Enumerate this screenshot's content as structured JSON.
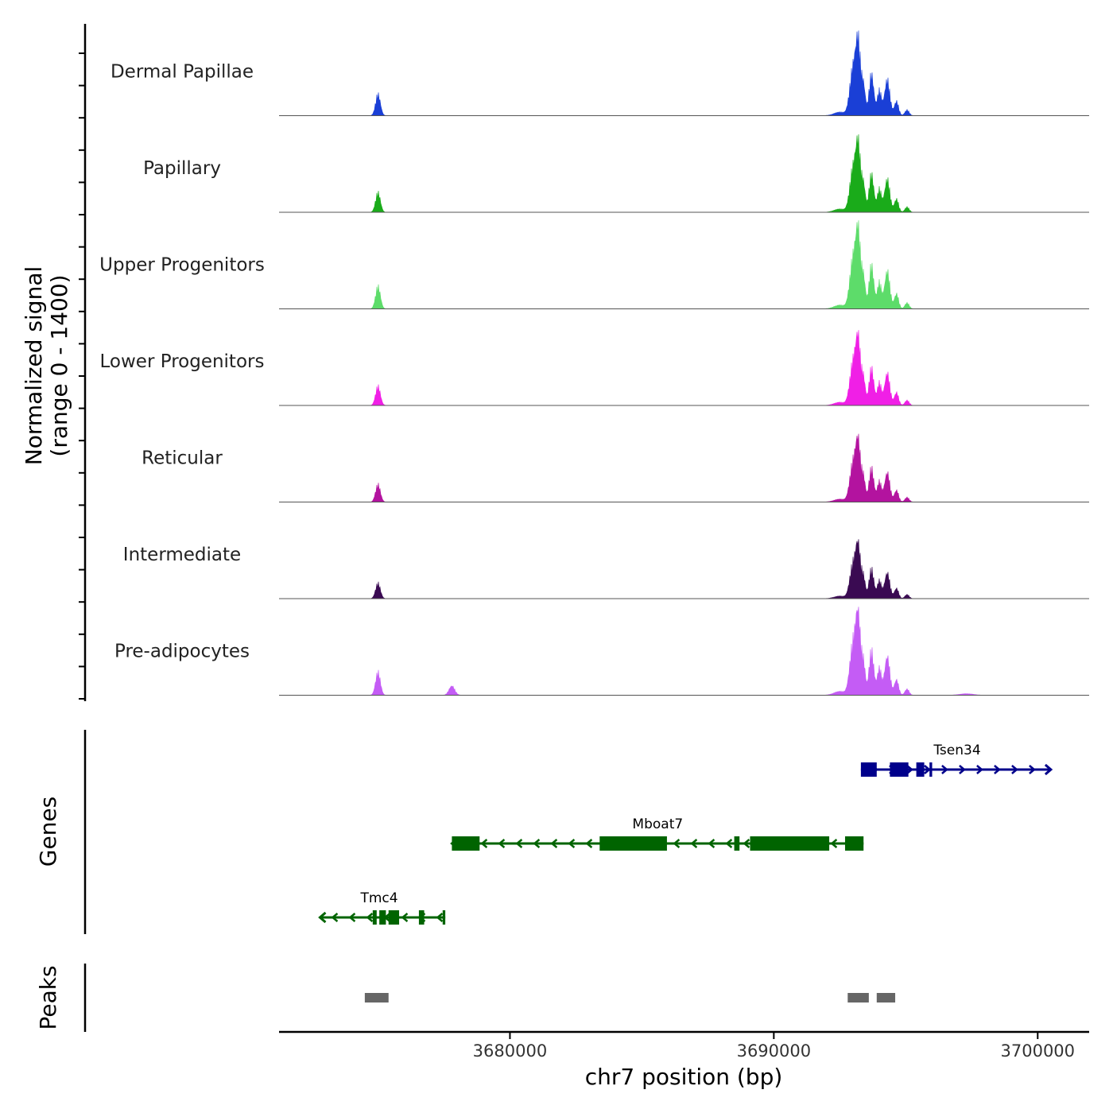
{
  "chart_data": {
    "type": "area",
    "title": "",
    "xlabel": "chr7 position (bp)",
    "ylabel": "Normalized signal",
    "ylabel_sub": "(range 0 - 1400)",
    "ylim": [
      0,
      1400
    ],
    "xlim": [
      3671250,
      3701950
    ],
    "x_ticks": [
      3680000,
      3690000,
      3700000
    ],
    "x_tick_labels": [
      "3680000",
      "3690000",
      "3700000"
    ],
    "tracks": [
      {
        "name": "Dermal Papillae",
        "color": "#1a3fd6"
      },
      {
        "name": "Papillary",
        "color": "#1aab1a"
      },
      {
        "name": "Upper Progenitors",
        "color": "#5ddc6a"
      },
      {
        "name": "Lower Progenitors",
        "color": "#f01fe6"
      },
      {
        "name": "Reticular",
        "color": "#b3139f"
      },
      {
        "name": "Intermediate",
        "color": "#3a0a52"
      },
      {
        "name": "Pre-adipocytes",
        "color": "#c45cf5"
      }
    ],
    "peak_profile": [
      {
        "center": 3675000,
        "width": 90,
        "scale": 0.3
      },
      {
        "center": 3692500,
        "width": 220,
        "scale": 0.05
      },
      {
        "center": 3693000,
        "width": 120,
        "scale": 0.65
      },
      {
        "center": 3693200,
        "width": 90,
        "scale": 0.95
      },
      {
        "center": 3693400,
        "width": 70,
        "scale": 0.4
      },
      {
        "center": 3693700,
        "width": 90,
        "scale": 0.58
      },
      {
        "center": 3694000,
        "width": 80,
        "scale": 0.35
      },
      {
        "center": 3694300,
        "width": 100,
        "scale": 0.5
      },
      {
        "center": 3694650,
        "width": 80,
        "scale": 0.2
      },
      {
        "center": 3695050,
        "width": 80,
        "scale": 0.08
      }
    ],
    "track_scales": [
      1.0,
      0.92,
      1.05,
      0.9,
      0.82,
      0.72,
      1.08
    ],
    "extra_peaks": {
      "Pre-adipocytes": [
        {
          "center": 3677800,
          "width": 110,
          "scale": 0.12
        },
        {
          "center": 3697300,
          "width": 260,
          "scale": 0.02
        }
      ]
    },
    "genes_panel": {
      "title": "Genes",
      "genes": [
        {
          "name": "Tsen34",
          "start": 3693300,
          "end": 3700500,
          "strand": "+",
          "color": "#00008b",
          "exons": [
            [
              3693300,
              3693900
            ],
            [
              3694400,
              3695100
            ],
            [
              3695400,
              3695700
            ],
            [
              3695900,
              3696000
            ]
          ]
        },
        {
          "name": "Mboat7",
          "start": 3677800,
          "end": 3693400,
          "strand": "-",
          "color": "#006400",
          "exons": [
            [
              3677800,
              3678850
            ],
            [
              3683400,
              3685950
            ],
            [
              3688500,
              3688700
            ],
            [
              3689100,
              3692100
            ],
            [
              3692700,
              3693400
            ]
          ]
        },
        {
          "name": "Tmc4",
          "start": 3672800,
          "end": 3677550,
          "strand": "-",
          "color": "#006400",
          "exons": [
            [
              3674800,
              3674950
            ],
            [
              3675050,
              3675300
            ],
            [
              3675400,
              3675800
            ],
            [
              3676550,
              3676750
            ],
            [
              3677450,
              3677550
            ]
          ]
        }
      ]
    },
    "peaks_panel": {
      "title": "Peaks",
      "color": "#666666",
      "regions": [
        [
          3674500,
          3675400
        ],
        [
          3692800,
          3693600
        ],
        [
          3693900,
          3694600
        ]
      ]
    }
  }
}
